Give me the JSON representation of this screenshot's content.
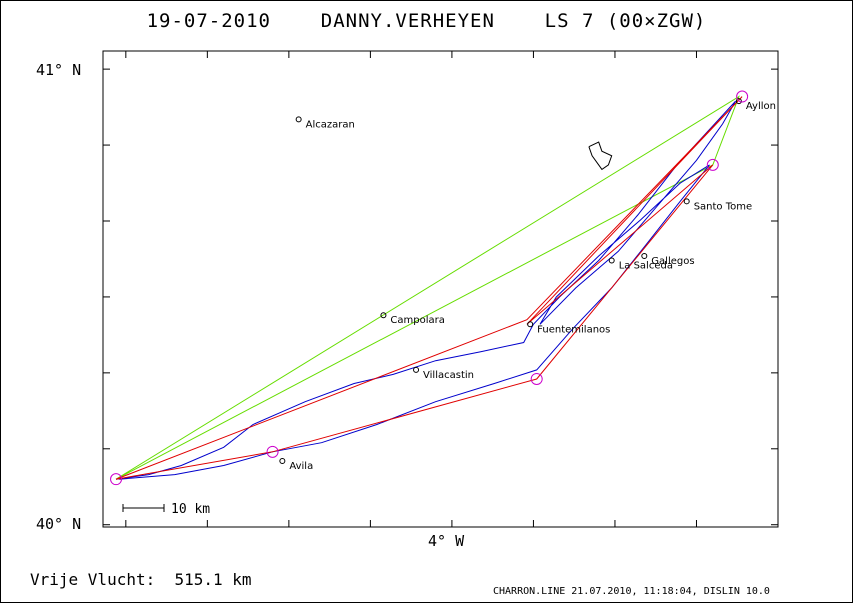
{
  "header": {
    "title": "19-07-2010    DANNY.VERHEYEN    LS 7 (00×ZGW)"
  },
  "axes": {
    "lat_top_label": "41° N",
    "lat_bottom_label": "40° N",
    "lon_label": "4° W"
  },
  "scale_bar": {
    "label": "10 km"
  },
  "towns": [
    {
      "name": "Alcazaran",
      "lon": -4.72,
      "lat": 40.89
    },
    {
      "name": "Ayllon",
      "lon": -3.37,
      "lat": 40.93
    },
    {
      "name": "Santo Tome",
      "lon": -3.53,
      "lat": 40.71
    },
    {
      "name": "Gallegos",
      "lon": -3.66,
      "lat": 40.59
    },
    {
      "name": "La Salceda",
      "lon": -3.76,
      "lat": 40.58
    },
    {
      "name": "Campolara",
      "lon": -4.46,
      "lat": 40.46
    },
    {
      "name": "Fuentemilanos",
      "lon": -4.01,
      "lat": 40.44
    },
    {
      "name": "Villacastin",
      "lon": -4.36,
      "lat": 40.34
    },
    {
      "name": "Avila",
      "lon": -4.77,
      "lat": 40.14
    }
  ],
  "turnpoints": [
    {
      "lon": -5.28,
      "lat": 40.1
    },
    {
      "lon": -4.8,
      "lat": 40.16
    },
    {
      "lon": -3.99,
      "lat": 40.32
    },
    {
      "lon": -3.36,
      "lat": 40.94
    },
    {
      "lon": -3.45,
      "lat": 40.79
    }
  ],
  "declared_route": [
    {
      "lon": -5.28,
      "lat": 40.1
    },
    {
      "lon": -3.37,
      "lat": 40.94
    },
    {
      "lon": -3.45,
      "lat": 40.79
    },
    {
      "lon": -5.28,
      "lat": 40.1
    }
  ],
  "flight_route": [
    {
      "lon": -5.28,
      "lat": 40.1
    },
    {
      "lon": -4.8,
      "lat": 40.16
    },
    {
      "lon": -3.99,
      "lat": 40.32
    },
    {
      "lon": -3.45,
      "lat": 40.79
    },
    {
      "lon": -4.02,
      "lat": 40.44
    },
    {
      "lon": -3.36,
      "lat": 40.94
    },
    {
      "lon": -4.02,
      "lat": 40.45
    },
    {
      "lon": -5.28,
      "lat": 40.1
    }
  ],
  "track": [
    {
      "lon": -5.28,
      "lat": 40.1
    },
    {
      "lon": -5.18,
      "lat": 40.11
    },
    {
      "lon": -5.08,
      "lat": 40.13
    },
    {
      "lon": -4.95,
      "lat": 40.17
    },
    {
      "lon": -4.86,
      "lat": 40.22
    },
    {
      "lon": -4.7,
      "lat": 40.27
    },
    {
      "lon": -4.55,
      "lat": 40.31
    },
    {
      "lon": -4.43,
      "lat": 40.33
    },
    {
      "lon": -4.3,
      "lat": 40.36
    },
    {
      "lon": -4.16,
      "lat": 40.38
    },
    {
      "lon": -4.03,
      "lat": 40.4
    },
    {
      "lon": -4.0,
      "lat": 40.44
    },
    {
      "lon": -3.92,
      "lat": 40.5
    },
    {
      "lon": -3.8,
      "lat": 40.58
    },
    {
      "lon": -3.68,
      "lat": 40.68
    },
    {
      "lon": -3.56,
      "lat": 40.79
    },
    {
      "lon": -3.47,
      "lat": 40.86
    },
    {
      "lon": -3.38,
      "lat": 40.93
    },
    {
      "lon": -3.42,
      "lat": 40.88
    },
    {
      "lon": -3.5,
      "lat": 40.8
    },
    {
      "lon": -3.62,
      "lat": 40.7
    },
    {
      "lon": -3.74,
      "lat": 40.6
    },
    {
      "lon": -3.87,
      "lat": 40.52
    },
    {
      "lon": -3.98,
      "lat": 40.44
    },
    {
      "lon": -3.93,
      "lat": 40.5
    },
    {
      "lon": -3.8,
      "lat": 40.59
    },
    {
      "lon": -3.67,
      "lat": 40.67
    },
    {
      "lon": -3.55,
      "lat": 40.75
    },
    {
      "lon": -3.46,
      "lat": 40.79
    },
    {
      "lon": -3.55,
      "lat": 40.71
    },
    {
      "lon": -3.66,
      "lat": 40.61
    },
    {
      "lon": -3.76,
      "lat": 40.52
    },
    {
      "lon": -3.88,
      "lat": 40.43
    },
    {
      "lon": -3.99,
      "lat": 40.34
    },
    {
      "lon": -4.12,
      "lat": 40.31
    },
    {
      "lon": -4.3,
      "lat": 40.27
    },
    {
      "lon": -4.48,
      "lat": 40.22
    },
    {
      "lon": -4.65,
      "lat": 40.18
    },
    {
      "lon": -4.8,
      "lat": 40.16
    },
    {
      "lon": -4.95,
      "lat": 40.13
    },
    {
      "lon": -5.1,
      "lat": 40.11
    },
    {
      "lon": -5.27,
      "lat": 40.1
    }
  ],
  "reservoir_outline": [
    {
      "lon": -3.83,
      "lat": 40.83
    },
    {
      "lon": -3.8,
      "lat": 40.84
    },
    {
      "lon": -3.79,
      "lat": 40.82
    },
    {
      "lon": -3.76,
      "lat": 40.81
    },
    {
      "lon": -3.77,
      "lat": 40.79
    },
    {
      "lon": -3.79,
      "lat": 40.78
    },
    {
      "lon": -3.8,
      "lat": 40.79
    },
    {
      "lon": -3.82,
      "lat": 40.81
    },
    {
      "lon": -3.83,
      "lat": 40.83
    }
  ],
  "map_extent": {
    "lon": [
      -5.32,
      -3.25
    ],
    "lat": [
      39.995,
      41.04
    ]
  },
  "colors": {
    "frame": "#000000",
    "track": "#0000cc",
    "flight_route": "#e00000",
    "declared_route": "#66dd00",
    "turnpoint": "#cc00cc"
  },
  "footer": {
    "distance": "Vrije Vlucht:  515.1 km",
    "credit": "CHARRON.LINE 21.07.2010, 11:18:04, DISLIN 10.0"
  }
}
